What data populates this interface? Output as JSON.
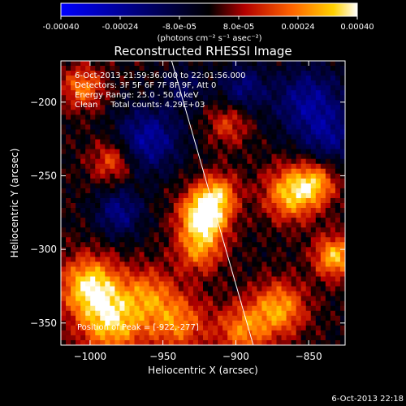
{
  "chart_data": {
    "type": "heatmap",
    "title": "Reconstructed RHESSI Image",
    "xlabel": "Heliocentric X (arcsec)",
    "ylabel": "Heliocentric Y (arcsec)",
    "xlim": [
      -1020,
      -825
    ],
    "ylim": [
      -365,
      -172
    ],
    "x_ticks": [
      -1000,
      -950,
      -900,
      -850
    ],
    "y_ticks": [
      -200,
      -250,
      -300,
      -350
    ],
    "x_tick_labels": [
      "−1000",
      "−950",
      "−900",
      "−850"
    ],
    "y_tick_labels": [
      "−200",
      "−250",
      "−300",
      "−350"
    ],
    "colorbar": {
      "range": [
        -0.0004,
        0.0004
      ],
      "ticks": [
        -0.0004,
        -0.00024,
        -8e-05,
        8e-05,
        0.00024,
        0.0004
      ],
      "tick_labels": [
        "-0.00040",
        "-0.00024",
        "-8.0e-05",
        "8.0e-05",
        "0.00024",
        "0.00040"
      ],
      "units_label": "(photons cm⁻² s⁻¹ asec⁻²)"
    },
    "annotations": {
      "time_range": "6-Oct-2013 21:59:36.000 to 22:01:56.000",
      "detectors": "Detectors: 3F 5F 6F 7F 8F 9F, Att 0",
      "energy_range": "Energy Range: 25.0 - 50.0 keV",
      "clean_info": "Clean     Total counts: 4.29E+03",
      "peak_position": "Position of Peak = [-922,-277]"
    },
    "peak": {
      "x": -922,
      "y": -277
    },
    "limb_line": {
      "x1": -944,
      "y1": -172,
      "x2": -888,
      "y2": -365
    },
    "footer_timestamp": "6-Oct-2013 22:18"
  }
}
